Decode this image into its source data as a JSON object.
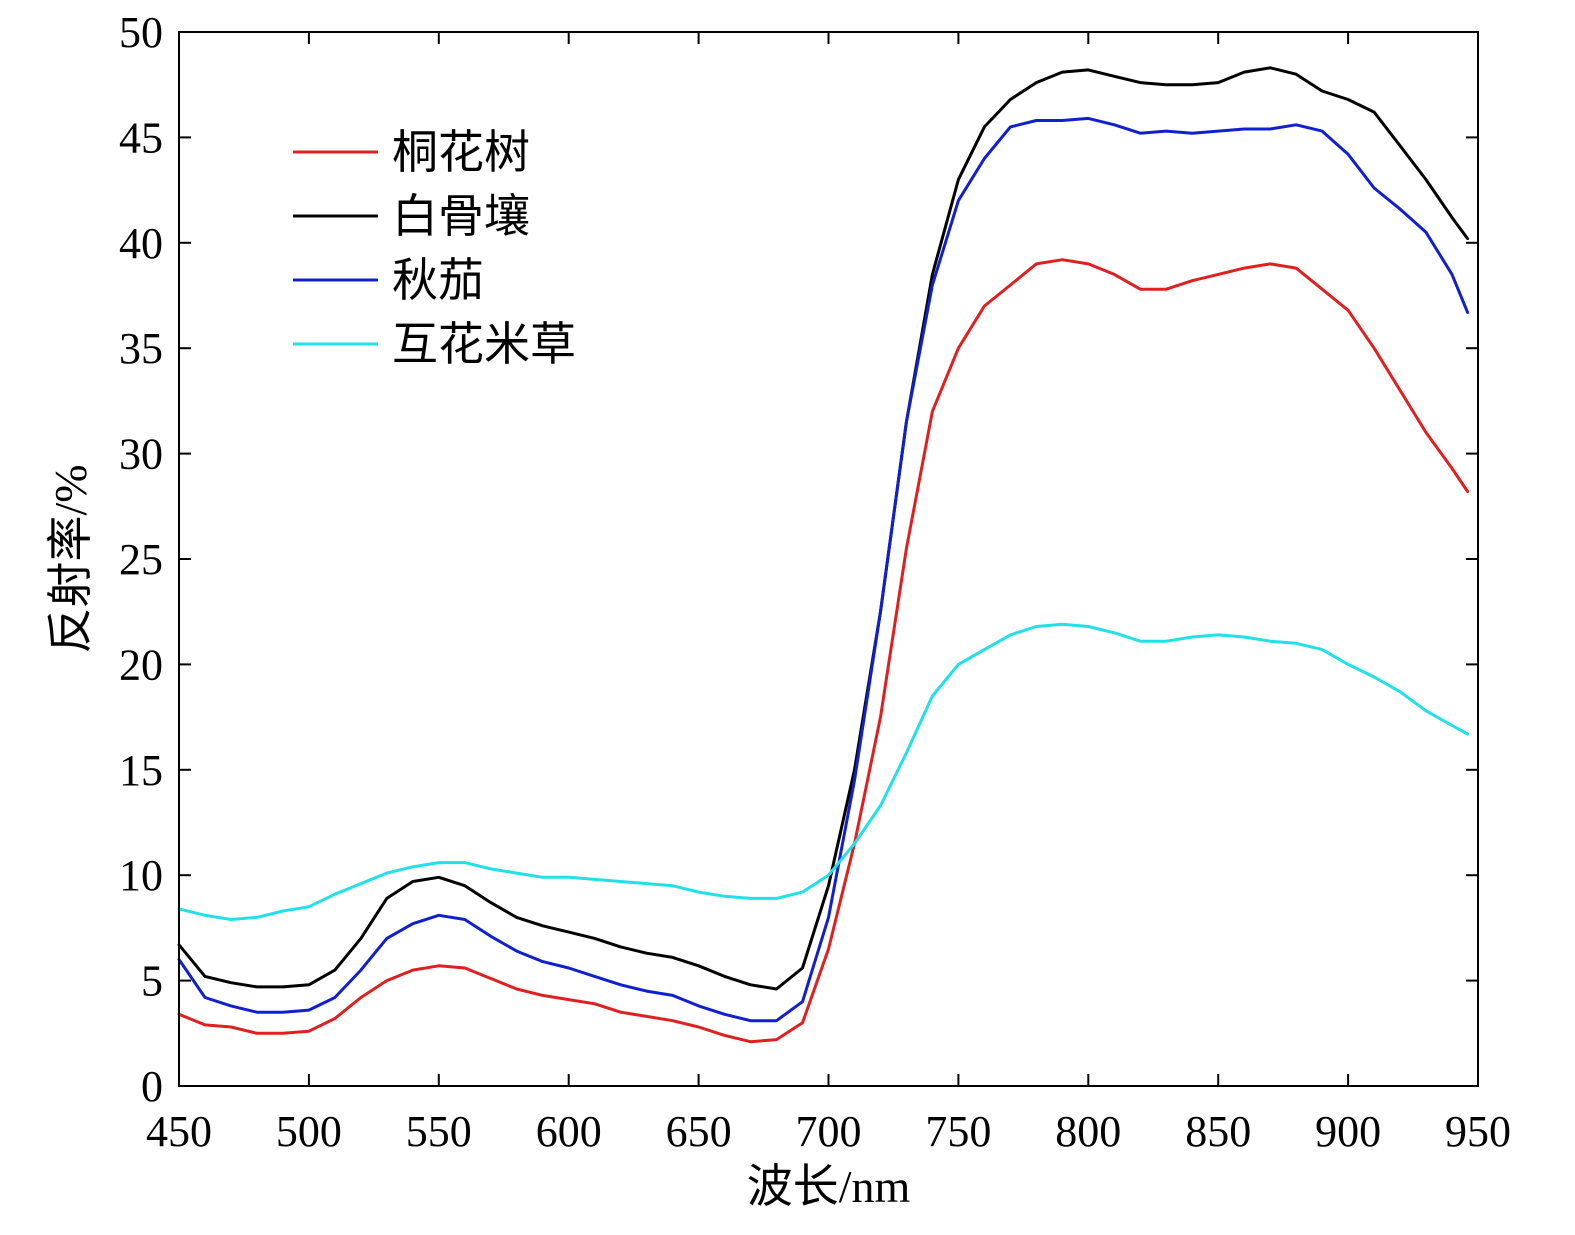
{
  "chart_data": {
    "type": "line",
    "xlabel": "波长/nm",
    "ylabel": "反射率/%",
    "xlim": [
      450,
      950
    ],
    "ylim": [
      0,
      50
    ],
    "xticks": [
      "450",
      "500",
      "550",
      "600",
      "650",
      "700",
      "750",
      "800",
      "850",
      "900",
      "950"
    ],
    "yticks": [
      "0",
      "5",
      "10",
      "15",
      "20",
      "25",
      "30",
      "35",
      "40",
      "45",
      "50"
    ],
    "grid": false,
    "legend_position": "top-left",
    "x": [
      450,
      460,
      470,
      480,
      490,
      500,
      510,
      520,
      530,
      540,
      550,
      560,
      570,
      580,
      590,
      600,
      610,
      620,
      630,
      640,
      650,
      660,
      670,
      680,
      690,
      700,
      710,
      720,
      730,
      740,
      750,
      760,
      770,
      780,
      790,
      800,
      810,
      820,
      830,
      840,
      850,
      860,
      870,
      880,
      890,
      900,
      910,
      920,
      930,
      940,
      946
    ],
    "series": [
      {
        "name": "桐花树",
        "color": "#e02020",
        "values": [
          3.4,
          2.9,
          2.8,
          2.5,
          2.5,
          2.6,
          3.2,
          4.2,
          5.0,
          5.5,
          5.7,
          5.6,
          5.1,
          4.6,
          4.3,
          4.1,
          3.9,
          3.5,
          3.3,
          3.1,
          2.8,
          2.4,
          2.1,
          2.2,
          3.0,
          6.5,
          11.5,
          17.5,
          25.5,
          32.0,
          35.0,
          37.0,
          38.0,
          39.0,
          39.2,
          39.0,
          38.5,
          37.8,
          37.8,
          38.2,
          38.5,
          38.8,
          39.0,
          38.8,
          37.8,
          36.8,
          35.0,
          33.0,
          31.0,
          29.3,
          28.2
        ]
      },
      {
        "name": "白骨壤",
        "color": "#000000",
        "values": [
          6.7,
          5.2,
          4.9,
          4.7,
          4.7,
          4.8,
          5.5,
          7.0,
          8.9,
          9.7,
          9.9,
          9.5,
          8.7,
          8.0,
          7.6,
          7.3,
          7.0,
          6.6,
          6.3,
          6.1,
          5.7,
          5.2,
          4.8,
          4.6,
          5.6,
          9.5,
          15.0,
          22.5,
          31.5,
          38.5,
          43.0,
          45.5,
          46.8,
          47.6,
          48.1,
          48.2,
          47.9,
          47.6,
          47.5,
          47.5,
          47.6,
          48.1,
          48.3,
          48.0,
          47.2,
          46.8,
          46.2,
          44.6,
          43.0,
          41.2,
          40.2
        ]
      },
      {
        "name": "秋茄",
        "color": "#1020d0",
        "values": [
          6.0,
          4.2,
          3.8,
          3.5,
          3.5,
          3.6,
          4.2,
          5.5,
          7.0,
          7.7,
          8.1,
          7.9,
          7.1,
          6.4,
          5.9,
          5.6,
          5.2,
          4.8,
          4.5,
          4.3,
          3.8,
          3.4,
          3.1,
          3.1,
          4.0,
          8.0,
          14.5,
          22.5,
          31.5,
          38.0,
          42.0,
          44.0,
          45.5,
          45.8,
          45.8,
          45.9,
          45.6,
          45.2,
          45.3,
          45.2,
          45.3,
          45.4,
          45.4,
          45.6,
          45.3,
          44.2,
          42.6,
          41.6,
          40.5,
          38.5,
          36.7
        ]
      },
      {
        "name": "互花米草",
        "color": "#20e0e8",
        "values": [
          8.4,
          8.1,
          7.9,
          8.0,
          8.3,
          8.5,
          9.1,
          9.6,
          10.1,
          10.4,
          10.6,
          10.6,
          10.3,
          10.1,
          9.9,
          9.9,
          9.8,
          9.7,
          9.6,
          9.5,
          9.2,
          9.0,
          8.9,
          8.9,
          9.2,
          10.0,
          11.5,
          13.3,
          15.8,
          18.5,
          20.0,
          20.7,
          21.4,
          21.8,
          21.9,
          21.8,
          21.5,
          21.1,
          21.1,
          21.3,
          21.4,
          21.3,
          21.1,
          21.0,
          20.7,
          20.0,
          19.4,
          18.7,
          17.8,
          17.1,
          16.7
        ]
      }
    ]
  }
}
